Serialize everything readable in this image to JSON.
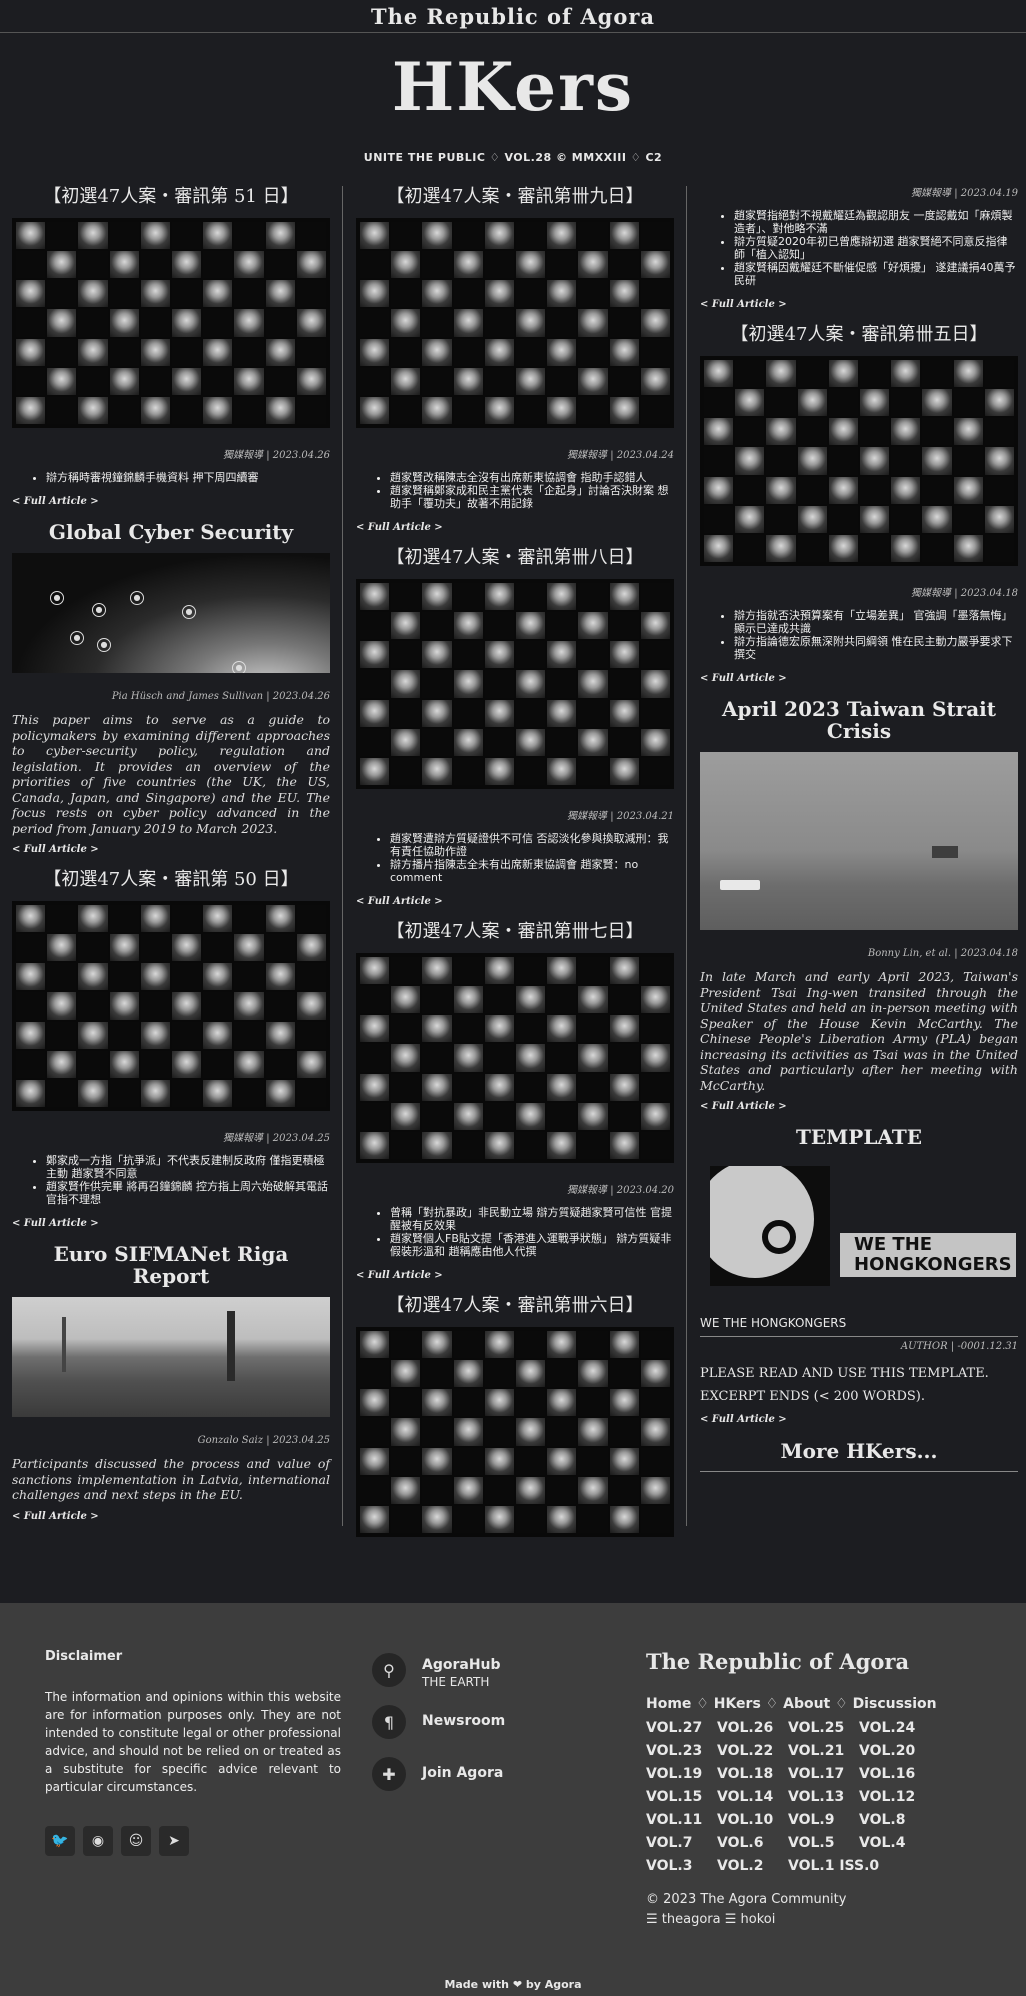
{
  "topbar": {
    "title": "The Republic of Agora"
  },
  "masthead": {
    "logo": "HKers",
    "issue_line": "UNITE THE PUBLIC ♢ VOL.28 © MMXXIII ♢ C2"
  },
  "col1": {
    "a1": {
      "title": "【初選47人案・審訊第 51 日】",
      "meta": "獨媒報導 | 2023.04.26",
      "bullets": [
        "辯方稱時審視鐘錦麟手機資料 押下周四續審"
      ],
      "link": "< Full Article >"
    },
    "a2": {
      "title": "Global Cyber Security",
      "meta": "Pia Hüsch and James Sullivan | 2023.04.26",
      "text": "This paper aims to serve as a guide to policymakers by examining different approaches to cyber-security policy, regulation and legislation. It provides an overview of the priorities of five countries (the UK, the US, Canada, Japan, and Singapore) and the EU. The focus rests on cyber policy advanced in the period from January 2019 to March 2023.",
      "link": "< Full Article >"
    },
    "a3": {
      "title": "【初選47人案・審訊第 50 日】",
      "meta": "獨媒報導 | 2023.04.25",
      "bullets": [
        "鄭家成一方指「抗爭派」不代表反建制反政府 僅指更積極主動 趙家賢不同意",
        "趙家賢作供完畢 將再召鐘錦麟 控方指上周六始破解其電話 官指不理想"
      ],
      "link": "< Full Article >"
    },
    "a4": {
      "title": "Euro SIFMANet Riga Report",
      "meta": "Gonzalo Saiz | 2023.04.25",
      "text": "Participants discussed the process and value of sanctions implementation in Latvia, international challenges and next steps in the EU.",
      "link": "< Full Article >"
    }
  },
  "col2": {
    "a1": {
      "title": "【初選47人案・審訊第卌九日】",
      "meta": "獨媒報導 | 2023.04.24",
      "bullets": [
        "趙家賢改稱陳志全沒有出席新東協調會 指助手認錯人",
        "趙家賢稱鄭家成和民主黨代表「企起身」討論否決財案 想助手「覆功夫」故著不用記錄"
      ],
      "link": "< Full Article >"
    },
    "a2": {
      "title": "【初選47人案・審訊第卌八日】",
      "meta": "獨媒報導 | 2023.04.21",
      "bullets": [
        "趙家賢遭辯方質疑證供不可信 否認淡化參與換取減刑：我有責任協助作證",
        "辯方播片指陳志全未有出席新東協調會 趙家賢：no comment"
      ],
      "link": "< Full Article >"
    },
    "a3": {
      "title": "【初選47人案・審訊第卌七日】",
      "meta": "獨媒報導 | 2023.04.20",
      "bullets": [
        "曾稱「對抗暴政」非民動立場 辯方質疑趙家賢可信性 官提醒被有反效果",
        "趙家賢個人FB貼文提「香港進入運戰爭狀態」 辯方質疑非假裝形溫和 趙稱應由他人代撰"
      ],
      "link": "< Full Article >"
    },
    "a4": {
      "title": "【初選47人案・審訊第卌六日】"
    }
  },
  "col3": {
    "a0": {
      "meta": "獨媒報導 | 2023.04.19",
      "bullets": [
        "趙家賢指絕對不視戴耀廷為觀認朋友 一度認戴如「麻煩製造者」、對他略不滿",
        "辯方質疑2020年初已曾應辯初選 趙家賢絕不同意反指律師「植入認知」",
        "趙家賢稱因戴耀廷不斷催促感「好煩擾」 遂建議捐40萬予民研"
      ],
      "link": "< Full Article >"
    },
    "a1": {
      "title": "【初選47人案・審訊第卌五日】",
      "meta": "獨媒報導 | 2023.04.18",
      "bullets": [
        "辯方指就否決預算案有「立場差異」 官強調「墨落無悔」顯示已達成共識",
        "辯方指論德宏原無深附共同綱領 惟在民主動力嚴爭要求下撰交"
      ],
      "link": "< Full Article >"
    },
    "a2": {
      "title": "April 2023 Taiwan Strait Crisis",
      "meta": "Bonny Lin, et al. | 2023.04.18",
      "text": "In late March and early April 2023, Taiwan's President Tsai Ing-wen transited through the United States and held an in-person meeting with Speaker of the House Kevin McCarthy. The Chinese People's Liberation Army (PLA) began increasing its activities as Tsai was in the United States and particularly after her meeting with McCarthy.",
      "link": "< Full Article >"
    },
    "a3": {
      "title": "TEMPLATE",
      "image_text": "WE THE HONGKONGERS",
      "name": "WE THE HONGKONGERS",
      "meta": "AUTHOR | -0001.12.31",
      "text1": "PLEASE READ AND USE THIS TEMPLATE.",
      "text2": "EXCERPT ENDS (< 200 WORDS).",
      "link": "< Full Article >"
    },
    "more": "More HKers..."
  },
  "footer": {
    "disclaimer_title": "Disclaimer",
    "disclaimer_text": "The information and opinions within this website are for information purposes only. They are not intended to constitute legal or other professional advice, and should not be relied on or treated as a substitute for specific advice relevant to particular circumstances.",
    "social": [
      "twitter-icon",
      "github-icon",
      "reddit-icon",
      "telegram-icon"
    ],
    "links": [
      {
        "title": "AgoraHub",
        "sub": "THE EARTH",
        "icon": "map-pin-icon"
      },
      {
        "title": "Newsroom",
        "sub": "",
        "icon": "paragraph-icon"
      },
      {
        "title": "Join Agora",
        "sub": "",
        "icon": "puzzle-icon"
      }
    ],
    "brand": "The Republic of Agora",
    "nav": [
      "Home",
      "HKers",
      "About",
      "Discussion"
    ],
    "nav_sep": "♢",
    "volumes": [
      "VOL.27",
      "VOL.26",
      "VOL.25",
      "VOL.24",
      "VOL.23",
      "VOL.22",
      "VOL.21",
      "VOL.20",
      "VOL.19",
      "VOL.18",
      "VOL.17",
      "VOL.16",
      "VOL.15",
      "VOL.14",
      "VOL.13",
      "VOL.12",
      "VOL.11",
      "VOL.10",
      "VOL.9",
      "VOL.8",
      "VOL.7",
      "VOL.6",
      "VOL.5",
      "VOL.4",
      "VOL.3",
      "VOL.2",
      "VOL.1 ISS.0"
    ],
    "copyright": "© 2023 The Agora Community",
    "credits": "☰ theagora ☰ hokoi",
    "made_with": "Made with ❤ by Agora"
  }
}
